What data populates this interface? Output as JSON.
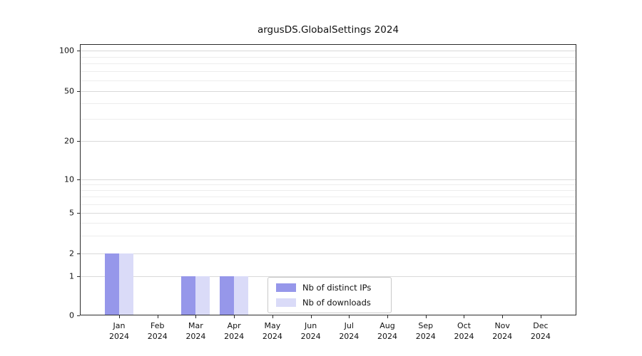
{
  "chart_data": {
    "type": "bar",
    "title": "argusDS.GlobalSettings 2024",
    "categories": [
      "Jan",
      "Feb",
      "Mar",
      "Apr",
      "May",
      "Jun",
      "Jul",
      "Aug",
      "Sep",
      "Oct",
      "Nov",
      "Dec"
    ],
    "year": "2024",
    "series": [
      {
        "name": "Nb of distinct IPs",
        "color": "#9697ea",
        "values": [
          2,
          0,
          1,
          1,
          0,
          0,
          0,
          0,
          0,
          0,
          0,
          0
        ]
      },
      {
        "name": "Nb of downloads",
        "color": "#dadbf8",
        "values": [
          2,
          0,
          1,
          1,
          0,
          0,
          0,
          0,
          0,
          0,
          0,
          0
        ]
      }
    ],
    "y_ticks": [
      0,
      1,
      2,
      5,
      10,
      20,
      50,
      100
    ],
    "y_minor_ticks": [
      3,
      4,
      6,
      7,
      8,
      9,
      30,
      40,
      60,
      70,
      80,
      90
    ],
    "ylim": [
      0,
      112
    ],
    "scale": "log-like",
    "grid": true,
    "legend_position": "inside-bottom-center"
  }
}
